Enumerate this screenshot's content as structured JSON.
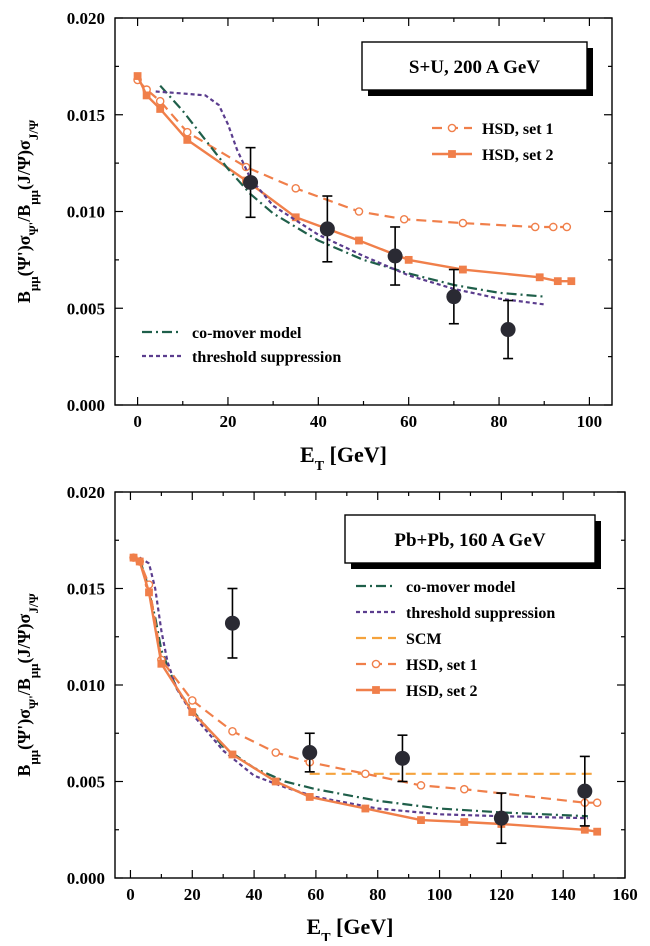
{
  "chart_data": [
    {
      "type": "line",
      "title": "S+U,  200 A GeV",
      "xlabel_main": "E",
      "xlabel_sub": "T",
      "xlabel_unit": " [GeV]",
      "ylabel": "B_{μμ}(Ψ')σ_{Ψ'}/B_{μμ}(J/Ψ)σ_{J/Ψ}",
      "xlim": [
        -5,
        105
      ],
      "ylim": [
        0,
        0.02
      ],
      "xticks": [
        0,
        20,
        40,
        60,
        80,
        100
      ],
      "yticks": [
        0.0,
        0.005,
        0.01,
        0.015,
        0.02
      ],
      "ytick_labels": [
        "0.000",
        "0.005",
        "0.010",
        "0.015",
        "0.020"
      ],
      "series": [
        {
          "name": "HSD, set 1",
          "color": "#f07f4a",
          "style": "dashed",
          "marker": "open-circle",
          "x": [
            0,
            2,
            5,
            11,
            24,
            35,
            49,
            59,
            72,
            88,
            92,
            95
          ],
          "y": [
            0.0168,
            0.0163,
            0.0157,
            0.0141,
            0.0123,
            0.0112,
            0.01,
            0.0096,
            0.0094,
            0.0092,
            0.0092,
            0.0092
          ]
        },
        {
          "name": "HSD, set 2",
          "color": "#f07f4a",
          "style": "solid",
          "marker": "filled-square",
          "x": [
            0,
            2,
            5,
            11,
            24,
            35,
            49,
            60,
            72,
            89,
            93,
            96
          ],
          "y": [
            0.017,
            0.016,
            0.0153,
            0.0137,
            0.0116,
            0.0097,
            0.0085,
            0.0075,
            0.007,
            0.0066,
            0.0064,
            0.0064
          ]
        },
        {
          "name": "co-mover model",
          "color": "#1f5f4a",
          "style": "dashdot",
          "marker": "none",
          "x": [
            5,
            10,
            15,
            20,
            25,
            30,
            40,
            50,
            60,
            70,
            80,
            90
          ],
          "y": [
            0.0165,
            0.0152,
            0.0137,
            0.0122,
            0.0109,
            0.0099,
            0.0085,
            0.0075,
            0.0068,
            0.0062,
            0.0058,
            0.0056
          ]
        },
        {
          "name": "threshold suppression",
          "color": "#5b3d8e",
          "style": "dotted",
          "marker": "none",
          "x": [
            4,
            10,
            15,
            18,
            20,
            22,
            25,
            30,
            40,
            50,
            60,
            70,
            80,
            90
          ],
          "y": [
            0.0162,
            0.0161,
            0.016,
            0.0155,
            0.0145,
            0.0132,
            0.0117,
            0.0103,
            0.0088,
            0.0077,
            0.0067,
            0.006,
            0.0055,
            0.0052
          ]
        }
      ],
      "data": {
        "name": "experiment",
        "x": [
          25,
          42,
          57,
          70,
          82
        ],
        "y": [
          0.0115,
          0.0091,
          0.0077,
          0.0056,
          0.0039
        ],
        "err": [
          0.0018,
          0.0017,
          0.0015,
          0.0014,
          0.0015
        ]
      },
      "legend_top": [
        "HSD, set 1",
        "HSD, set 2"
      ],
      "legend_bottom": [
        "co-mover model",
        "threshold suppression"
      ]
    },
    {
      "type": "line",
      "title": "Pb+Pb,  160 A GeV",
      "xlabel_main": "E",
      "xlabel_sub": "T",
      "xlabel_unit": " [GeV]",
      "ylabel": "B_{μμ}(Ψ')σ_{Ψ'}/B_{μμ}(J/Ψ)σ_{J/Ψ}",
      "xlim": [
        -5,
        160
      ],
      "ylim": [
        0,
        0.02
      ],
      "xticks": [
        0,
        20,
        40,
        60,
        80,
        100,
        120,
        140,
        160
      ],
      "yticks": [
        0.0,
        0.005,
        0.01,
        0.015,
        0.02
      ],
      "ytick_labels": [
        "0.000",
        "0.005",
        "0.010",
        "0.015",
        "0.020"
      ],
      "series": [
        {
          "name": "co-mover model",
          "color": "#1f5f4a",
          "style": "dashdot",
          "marker": "none",
          "x": [
            3,
            5,
            8,
            10,
            15,
            20,
            30,
            40,
            50,
            60,
            80,
            100,
            120,
            148
          ],
          "y": [
            0.0165,
            0.0155,
            0.0135,
            0.0118,
            0.0098,
            0.0087,
            0.0068,
            0.0057,
            0.005,
            0.0046,
            0.004,
            0.0036,
            0.0034,
            0.0032
          ]
        },
        {
          "name": "threshold suppression",
          "color": "#5b3d8e",
          "style": "dotted",
          "marker": "none",
          "x": [
            3,
            6,
            8,
            10,
            12,
            15,
            20,
            30,
            40,
            50,
            60,
            80,
            100,
            120,
            148
          ],
          "y": [
            0.0166,
            0.0163,
            0.015,
            0.0128,
            0.0112,
            0.0098,
            0.0085,
            0.0066,
            0.0053,
            0.0047,
            0.0042,
            0.0036,
            0.0033,
            0.0032,
            0.0031
          ]
        },
        {
          "name": "SCM",
          "color": "#f5a23c",
          "style": "dashed",
          "marker": "none",
          "x": [
            58,
            75,
            100,
            125,
            150
          ],
          "y": [
            0.0054,
            0.0054,
            0.0054,
            0.0054,
            0.0054
          ]
        },
        {
          "name": "HSD, set 1",
          "color": "#f07f4a",
          "style": "dashed",
          "marker": "open-circle",
          "x": [
            1,
            3,
            6,
            10,
            20,
            33,
            47,
            58,
            76,
            94,
            108,
            147,
            151
          ],
          "y": [
            0.0166,
            0.0164,
            0.0152,
            0.0113,
            0.0092,
            0.0076,
            0.0065,
            0.006,
            0.0054,
            0.0048,
            0.0046,
            0.0039,
            0.0039
          ]
        },
        {
          "name": "HSD, set 2",
          "color": "#f07f4a",
          "style": "solid",
          "marker": "filled-square",
          "x": [
            1,
            3,
            6,
            10,
            20,
            33,
            47,
            58,
            76,
            94,
            108,
            120,
            147,
            151
          ],
          "y": [
            0.0166,
            0.0164,
            0.0148,
            0.0111,
            0.0086,
            0.0064,
            0.005,
            0.0042,
            0.0036,
            0.003,
            0.0029,
            0.0028,
            0.0025,
            0.0024
          ]
        }
      ],
      "data": {
        "name": "experiment",
        "x": [
          33,
          58,
          88,
          120,
          147
        ],
        "y": [
          0.0132,
          0.0065,
          0.0062,
          0.0031,
          0.0045
        ],
        "err": [
          0.0018,
          0.001,
          0.0012,
          0.0013,
          0.0018
        ]
      },
      "legend_top": [
        "co-mover model",
        "threshold suppression",
        "SCM",
        "HSD, set 1",
        "HSD, set 2"
      ],
      "legend_bottom": []
    }
  ]
}
